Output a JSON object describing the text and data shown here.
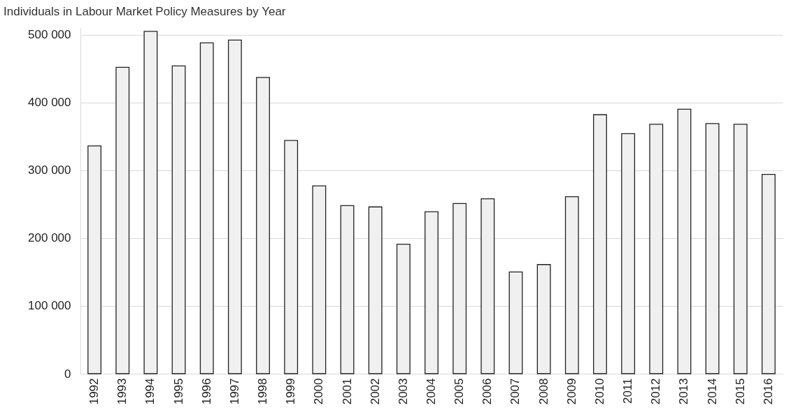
{
  "chart_data": {
    "type": "bar",
    "title": "Individuals in Labour Market Policy Measures by Year",
    "categories": [
      "1992",
      "1993",
      "1994",
      "1995",
      "1996",
      "1997",
      "1998",
      "1999",
      "2000",
      "2001",
      "2002",
      "2003",
      "2004",
      "2005",
      "2006",
      "2007",
      "2008",
      "2009",
      "2010",
      "2011",
      "2012",
      "2013",
      "2014",
      "2015",
      "2016"
    ],
    "values": [
      336000,
      452000,
      505000,
      454000,
      488000,
      492000,
      437000,
      344000,
      277000,
      248000,
      246000,
      191000,
      239000,
      251000,
      258000,
      150000,
      161000,
      261000,
      382000,
      354000,
      368000,
      390000,
      369000,
      368000,
      294000
    ],
    "color": "#f0f0f0",
    "ylim": [
      0,
      510000
    ],
    "yticks": [
      0,
      {
        "value": 100000,
        "label": "100 000"
      },
      {
        "value": 200000,
        "label": "200 000"
      },
      {
        "value": 300000,
        "label": "300 000"
      },
      {
        "value": 400000,
        "label": "400 000"
      },
      {
        "value": 500000,
        "label": "500 000"
      }
    ],
    "grid": "y"
  }
}
